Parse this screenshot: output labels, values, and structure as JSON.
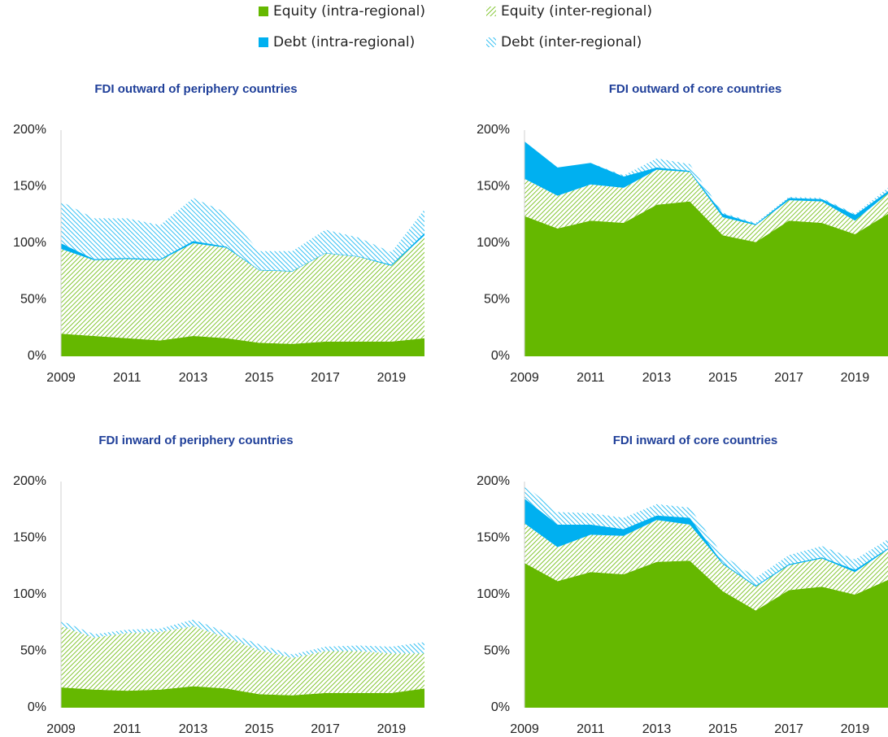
{
  "legend": [
    "Equity (intra-regional)",
    "Equity (inter-regional)",
    "Debt (intra-regional)",
    "Debt (inter-regional)"
  ],
  "chart_data": [
    {
      "type": "area",
      "title": "FDI outward of periphery countries",
      "x": [
        2009,
        2010,
        2011,
        2012,
        2013,
        2014,
        2015,
        2016,
        2017,
        2018,
        2019,
        2020
      ],
      "xlim": [
        2009,
        2020
      ],
      "xticks": [
        2009,
        2011,
        2013,
        2015,
        2017,
        2019
      ],
      "ylim": [
        0,
        200
      ],
      "yticks": [
        {
          "value": 0,
          "label": "0%"
        },
        {
          "value": 50,
          "label": "50%"
        },
        {
          "value": 100,
          "label": "100%"
        },
        {
          "value": 150,
          "label": "150%"
        },
        {
          "value": 200,
          "label": "200%"
        }
      ],
      "stacked": true,
      "series": [
        {
          "color": "#65b800",
          "hatched": false,
          "values": [
            20,
            18,
            16,
            14,
            18,
            16,
            12,
            11,
            13,
            13,
            13,
            16
          ]
        },
        {
          "color": "#65b800",
          "hatched": true,
          "values": [
            75,
            67,
            70,
            71,
            82,
            80,
            64,
            64,
            78,
            75,
            67,
            91
          ]
        },
        {
          "color": "#00b0f0",
          "hatched": false,
          "values": [
            5,
            1,
            1,
            1,
            2,
            1,
            0.5,
            0.5,
            0.5,
            0.5,
            1,
            2
          ]
        },
        {
          "color": "#00b0f0",
          "hatched": true,
          "values": [
            37,
            36,
            35,
            30,
            38,
            30,
            16.5,
            17.5,
            20.5,
            16.5,
            11,
            21
          ]
        }
      ]
    },
    {
      "type": "area",
      "title": "FDI outward of core countries",
      "x": [
        2009,
        2010,
        2011,
        2012,
        2013,
        2014,
        2015,
        2016,
        2017,
        2018,
        2019,
        2020
      ],
      "xlim": [
        2009,
        2020
      ],
      "xticks": [
        2009,
        2011,
        2013,
        2015,
        2017,
        2019
      ],
      "ylim": [
        0,
        200
      ],
      "yticks": [
        {
          "value": 0,
          "label": "0%"
        },
        {
          "value": 50,
          "label": "50%"
        },
        {
          "value": 100,
          "label": "100%"
        },
        {
          "value": 150,
          "label": "150%"
        },
        {
          "value": 200,
          "label": "200%"
        }
      ],
      "stacked": true,
      "series": [
        {
          "color": "#65b800",
          "hatched": false,
          "values": [
            124,
            113,
            120,
            118,
            134,
            137,
            107,
            101,
            120,
            118,
            108,
            126
          ]
        },
        {
          "color": "#65b800",
          "hatched": true,
          "values": [
            33,
            29,
            32,
            31,
            31,
            26,
            16,
            15,
            18,
            19,
            12,
            18
          ]
        },
        {
          "color": "#00b0f0",
          "hatched": false,
          "values": [
            33,
            25,
            19,
            10,
            2,
            1,
            3,
            1,
            2,
            2,
            5,
            2
          ]
        },
        {
          "color": "#00b0f0",
          "hatched": true,
          "values": [
            0,
            0,
            0,
            1,
            8,
            6,
            1,
            1,
            1,
            1,
            1,
            3
          ]
        }
      ]
    },
    {
      "type": "area",
      "title": "FDI inward of periphery countries",
      "x": [
        2009,
        2010,
        2011,
        2012,
        2013,
        2014,
        2015,
        2016,
        2017,
        2018,
        2019,
        2020
      ],
      "xlim": [
        2009,
        2020
      ],
      "xticks": [
        2009,
        2011,
        2013,
        2015,
        2017,
        2019
      ],
      "ylim": [
        0,
        200
      ],
      "yticks": [
        {
          "value": 0,
          "label": "0%"
        },
        {
          "value": 50,
          "label": "50%"
        },
        {
          "value": 100,
          "label": "100%"
        },
        {
          "value": 150,
          "label": "150%"
        },
        {
          "value": 200,
          "label": "200%"
        }
      ],
      "stacked": true,
      "series": [
        {
          "color": "#65b800",
          "hatched": false,
          "values": [
            18,
            16,
            15,
            16,
            19,
            17,
            12,
            11,
            13,
            13,
            13,
            17
          ]
        },
        {
          "color": "#65b800",
          "hatched": true,
          "values": [
            54,
            46,
            51,
            51,
            53,
            45,
            39,
            33,
            37,
            37,
            35,
            31
          ]
        },
        {
          "color": "#00b0f0",
          "hatched": false,
          "values": [
            0,
            0,
            0,
            0,
            0,
            0,
            0,
            0,
            0,
            0,
            0,
            0
          ]
        },
        {
          "color": "#00b0f0",
          "hatched": true,
          "values": [
            5,
            3,
            3,
            3,
            6,
            5,
            5,
            3,
            4,
            5,
            6,
            10
          ]
        }
      ]
    },
    {
      "type": "area",
      "title": "FDI inward of core countries",
      "x": [
        2009,
        2010,
        2011,
        2012,
        2013,
        2014,
        2015,
        2016,
        2017,
        2018,
        2019,
        2020
      ],
      "xlim": [
        2009,
        2020
      ],
      "xticks": [
        2009,
        2011,
        2013,
        2015,
        2017,
        2019
      ],
      "ylim": [
        0,
        200
      ],
      "yticks": [
        {
          "value": 0,
          "label": "0%"
        },
        {
          "value": 50,
          "label": "50%"
        },
        {
          "value": 100,
          "label": "100%"
        },
        {
          "value": 150,
          "label": "150%"
        },
        {
          "value": 200,
          "label": "200%"
        }
      ],
      "stacked": true,
      "series": [
        {
          "color": "#65b800",
          "hatched": false,
          "values": [
            128,
            112,
            120,
            118,
            129,
            130,
            103,
            86,
            104,
            107,
            100,
            113
          ]
        },
        {
          "color": "#65b800",
          "hatched": true,
          "values": [
            35,
            30,
            33,
            34,
            37,
            32,
            24,
            21,
            22,
            25,
            20,
            27
          ]
        },
        {
          "color": "#00b0f0",
          "hatched": false,
          "values": [
            22,
            20,
            9,
            6,
            4,
            6,
            1,
            1,
            1,
            1,
            2,
            1
          ]
        },
        {
          "color": "#00b0f0",
          "hatched": true,
          "values": [
            12,
            11,
            10,
            10,
            10,
            9,
            7,
            7,
            8,
            10,
            9,
            8
          ]
        }
      ]
    }
  ]
}
